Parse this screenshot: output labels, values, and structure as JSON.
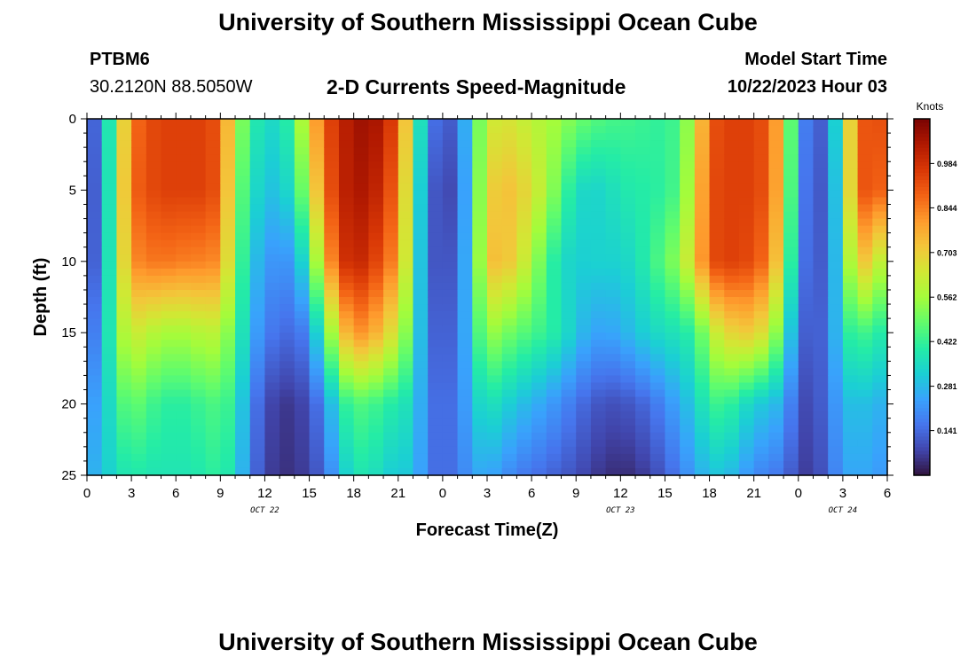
{
  "header": {
    "title": "University of Southern Mississippi Ocean Cube",
    "station": "PTBM6",
    "coords": "30.2120N  88.5050W",
    "subtitle": "2-D Currents Speed-Magnitude",
    "model_label": "Model Start Time",
    "model_time": "10/22/2023 Hour 03"
  },
  "footer": {
    "title": "University of Southern Mississippi Ocean Cube"
  },
  "chart_data": {
    "type": "heatmap",
    "title": "2-D Currents Speed-Magnitude",
    "xlabel": "Forecast Time(Z)",
    "ylabel": "Depth (ft)",
    "x_range_hours": [
      0,
      54
    ],
    "ylim": [
      0,
      25
    ],
    "y_inverted": true,
    "x_ticks": [
      "0",
      "3",
      "6",
      "9",
      "12",
      "15",
      "18",
      "21",
      "0",
      "3",
      "6",
      "9",
      "12",
      "15",
      "18",
      "21",
      "0",
      "3",
      "6"
    ],
    "y_ticks": [
      "0",
      "5",
      "10",
      "15",
      "20",
      "25"
    ],
    "date_labels": [
      {
        "hour": 12,
        "text": "OCT 22"
      },
      {
        "hour": 36,
        "text": "OCT 23"
      },
      {
        "hour": 51,
        "text": "OCT 24"
      }
    ],
    "colorbar": {
      "label": "Knots",
      "range": [
        0,
        1.125
      ],
      "ticks": [
        "0.141",
        "0.281",
        "0.422",
        "0.562",
        "0.703",
        "0.844",
        "0.984"
      ],
      "colors": [
        "#30123b",
        "#4145ab",
        "#4675ed",
        "#39a2fc",
        "#1bcfd4",
        "#24eca6",
        "#61fc6c",
        "#a4fc3b",
        "#d1e834",
        "#f3c63a",
        "#fe9b2d",
        "#f36315",
        "#d93806",
        "#b11901",
        "#7a0403"
      ]
    },
    "depth_levels_ft": [
      0,
      5,
      10,
      15,
      20,
      25
    ],
    "hours": [
      0,
      1,
      2,
      3,
      4,
      5,
      6,
      7,
      8,
      9,
      10,
      11,
      12,
      13,
      14,
      15,
      16,
      17,
      18,
      19,
      20,
      21,
      22,
      23,
      24,
      25,
      26,
      27,
      28,
      29,
      30,
      31,
      32,
      33,
      34,
      35,
      36,
      37,
      38,
      39,
      40,
      41,
      42,
      43,
      44,
      45,
      46,
      47,
      48,
      49,
      50,
      51,
      52,
      53,
      54
    ],
    "speed_knots": [
      [
        0.05,
        0.22,
        0.55,
        0.85,
        0.92,
        0.95,
        0.95,
        0.95,
        0.95,
        0.9,
        0.6,
        0.42,
        0.35,
        0.35,
        0.45,
        0.7,
        0.9,
        1.0,
        1.06,
        1.08,
        1.03,
        0.9,
        0.55,
        0.18,
        0.12,
        0.12,
        0.4,
        0.62,
        0.66,
        0.64,
        0.6,
        0.58,
        0.55,
        0.5,
        0.47,
        0.45,
        0.44,
        0.44,
        0.42,
        0.42,
        0.45,
        0.62,
        0.9,
        0.95,
        0.95,
        0.95,
        0.9,
        0.7,
        0.25,
        0.1,
        0.15,
        0.5,
        0.9,
        0.92,
        0.92
      ],
      [
        0.05,
        0.2,
        0.55,
        0.88,
        0.92,
        0.95,
        0.95,
        0.95,
        0.95,
        0.9,
        0.55,
        0.38,
        0.3,
        0.3,
        0.38,
        0.6,
        0.85,
        1.0,
        1.05,
        1.05,
        0.98,
        0.85,
        0.5,
        0.14,
        0.08,
        0.1,
        0.38,
        0.68,
        0.74,
        0.72,
        0.66,
        0.58,
        0.46,
        0.36,
        0.33,
        0.35,
        0.38,
        0.4,
        0.4,
        0.42,
        0.46,
        0.66,
        0.92,
        0.95,
        0.95,
        0.95,
        0.9,
        0.68,
        0.23,
        0.09,
        0.14,
        0.45,
        0.92,
        0.9,
        0.88
      ],
      [
        0.06,
        0.2,
        0.55,
        0.82,
        0.85,
        0.86,
        0.85,
        0.84,
        0.84,
        0.82,
        0.52,
        0.32,
        0.24,
        0.2,
        0.24,
        0.42,
        0.72,
        0.95,
        1.02,
        0.98,
        0.9,
        0.8,
        0.48,
        0.12,
        0.1,
        0.12,
        0.38,
        0.72,
        0.75,
        0.68,
        0.58,
        0.45,
        0.36,
        0.32,
        0.33,
        0.33,
        0.33,
        0.36,
        0.42,
        0.48,
        0.55,
        0.7,
        0.92,
        0.95,
        0.95,
        0.92,
        0.85,
        0.62,
        0.2,
        0.1,
        0.14,
        0.42,
        0.75,
        0.68,
        0.55
      ],
      [
        0.12,
        0.24,
        0.52,
        0.65,
        0.6,
        0.58,
        0.56,
        0.58,
        0.6,
        0.6,
        0.46,
        0.28,
        0.18,
        0.15,
        0.14,
        0.2,
        0.45,
        0.68,
        0.82,
        0.8,
        0.72,
        0.62,
        0.44,
        0.14,
        0.12,
        0.14,
        0.36,
        0.56,
        0.52,
        0.48,
        0.45,
        0.42,
        0.38,
        0.3,
        0.25,
        0.24,
        0.26,
        0.3,
        0.34,
        0.36,
        0.38,
        0.42,
        0.58,
        0.68,
        0.7,
        0.72,
        0.62,
        0.45,
        0.15,
        0.1,
        0.16,
        0.38,
        0.45,
        0.42,
        0.38
      ],
      [
        0.2,
        0.28,
        0.42,
        0.5,
        0.45,
        0.42,
        0.4,
        0.42,
        0.44,
        0.46,
        0.4,
        0.2,
        0.1,
        0.06,
        0.06,
        0.1,
        0.2,
        0.38,
        0.46,
        0.45,
        0.42,
        0.38,
        0.36,
        0.16,
        0.14,
        0.16,
        0.3,
        0.38,
        0.34,
        0.3,
        0.27,
        0.24,
        0.2,
        0.16,
        0.12,
        0.1,
        0.1,
        0.12,
        0.15,
        0.2,
        0.26,
        0.32,
        0.42,
        0.44,
        0.38,
        0.32,
        0.3,
        0.26,
        0.1,
        0.08,
        0.16,
        0.28,
        0.3,
        0.28,
        0.26
      ],
      [
        0.24,
        0.3,
        0.36,
        0.4,
        0.38,
        0.38,
        0.38,
        0.38,
        0.4,
        0.42,
        0.36,
        0.18,
        0.08,
        0.05,
        0.05,
        0.08,
        0.14,
        0.28,
        0.38,
        0.38,
        0.34,
        0.3,
        0.32,
        0.16,
        0.14,
        0.16,
        0.24,
        0.26,
        0.22,
        0.18,
        0.16,
        0.14,
        0.12,
        0.1,
        0.07,
        0.05,
        0.04,
        0.05,
        0.08,
        0.12,
        0.18,
        0.24,
        0.3,
        0.3,
        0.26,
        0.2,
        0.18,
        0.16,
        0.08,
        0.06,
        0.14,
        0.24,
        0.26,
        0.24,
        0.22
      ]
    ]
  }
}
